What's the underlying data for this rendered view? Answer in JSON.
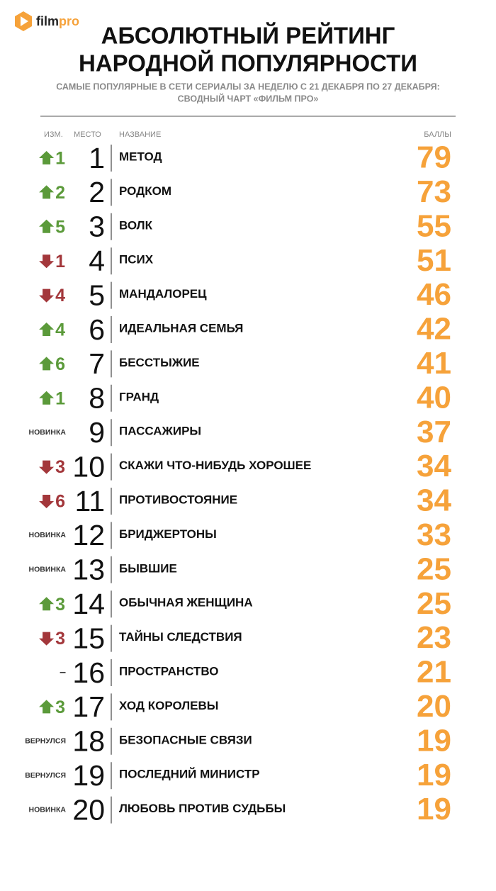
{
  "header": {
    "logo": [
      "film",
      "pro"
    ],
    "title": [
      "АБСОЛЮТНЫЙ РЕЙТИНГ",
      "НАРОДНОЙ ПОПУЛЯРНОСТИ"
    ],
    "subtitle": [
      "САМЫЕ ПОПУЛЯРНЫЕ В СЕТИ СЕРИАЛЫ ЗА НЕДЕЛЮ С 21 ДЕКАБРЯ ПО 27 ДЕКАБРЯ:",
      "СВОДНЫЙ ЧАРТ «ФИЛЬМ ПРО»"
    ]
  },
  "colors": {
    "up": "#5b9a3a",
    "down": "#a3373b",
    "score": "#f6a23a",
    "logo": "#f6a23a"
  },
  "table": {
    "columns": [
      "ИЗМ.",
      "МЕСТО",
      "НАЗВАНИЕ",
      "БАЛЛЫ"
    ],
    "rows": [
      {
        "change": {
          "direction": "up",
          "value": 1
        },
        "place": 1,
        "name": "МЕТОД",
        "score": 79
      },
      {
        "change": {
          "direction": "up",
          "value": 2
        },
        "place": 2,
        "name": "РОДКОМ",
        "score": 73
      },
      {
        "change": {
          "direction": "up",
          "value": 5
        },
        "place": 3,
        "name": "ВОЛК",
        "score": 55
      },
      {
        "change": {
          "direction": "down",
          "value": 1
        },
        "place": 4,
        "name": "ПСИХ",
        "score": 51
      },
      {
        "change": {
          "direction": "down",
          "value": 4
        },
        "place": 5,
        "name": "МАНДАЛОРЕЦ",
        "score": 46
      },
      {
        "change": {
          "direction": "up",
          "value": 4
        },
        "place": 6,
        "name": "ИДЕАЛЬНАЯ СЕМЬЯ",
        "score": 42
      },
      {
        "change": {
          "direction": "up",
          "value": 6
        },
        "place": 7,
        "name": "БЕССТЫЖИЕ",
        "score": 41
      },
      {
        "change": {
          "direction": "up",
          "value": 1
        },
        "place": 8,
        "name": "ГРАНД",
        "score": 40
      },
      {
        "change": {
          "label": "НОВИНКА"
        },
        "place": 9,
        "name": "ПАССАЖИРЫ",
        "score": 37
      },
      {
        "change": {
          "direction": "down",
          "value": 3
        },
        "place": 10,
        "name": "СКАЖИ ЧТО-НИБУДЬ ХОРОШЕЕ",
        "score": 34
      },
      {
        "change": {
          "direction": "down",
          "value": 6
        },
        "place": 11,
        "name": "ПРОТИВОСТОЯНИЕ",
        "score": 34
      },
      {
        "change": {
          "label": "НОВИНКА"
        },
        "place": 12,
        "name": "БРИДЖЕРТОНЫ",
        "score": 33
      },
      {
        "change": {
          "label": "НОВИНКА"
        },
        "place": 13,
        "name": "БЫВШИЕ",
        "score": 25
      },
      {
        "change": {
          "direction": "up",
          "value": 3
        },
        "place": 14,
        "name": "ОБЫЧНАЯ ЖЕНЩИНА",
        "score": 25
      },
      {
        "change": {
          "direction": "down",
          "value": 3
        },
        "place": 15,
        "name": "ТАЙНЫ СЛЕДСТВИЯ",
        "score": 23
      },
      {
        "change": {
          "label": "–"
        },
        "place": 16,
        "name": "ПРОСТРАНСТВО",
        "score": 21
      },
      {
        "change": {
          "direction": "up",
          "value": 3
        },
        "place": 17,
        "name": "ХОД КОРОЛЕВЫ",
        "score": 20
      },
      {
        "change": {
          "label": "ВЕРНУЛСЯ"
        },
        "place": 18,
        "name": "БЕЗОПАСНЫЕ СВЯЗИ",
        "score": 19
      },
      {
        "change": {
          "label": "ВЕРНУЛСЯ"
        },
        "place": 19,
        "name": "ПОСЛЕДНИЙ МИНИСТР",
        "score": 19
      },
      {
        "change": {
          "label": "НОВИНКА"
        },
        "place": 20,
        "name": "ЛЮБОВЬ ПРОТИВ СУДЬБЫ",
        "score": 19
      }
    ]
  }
}
